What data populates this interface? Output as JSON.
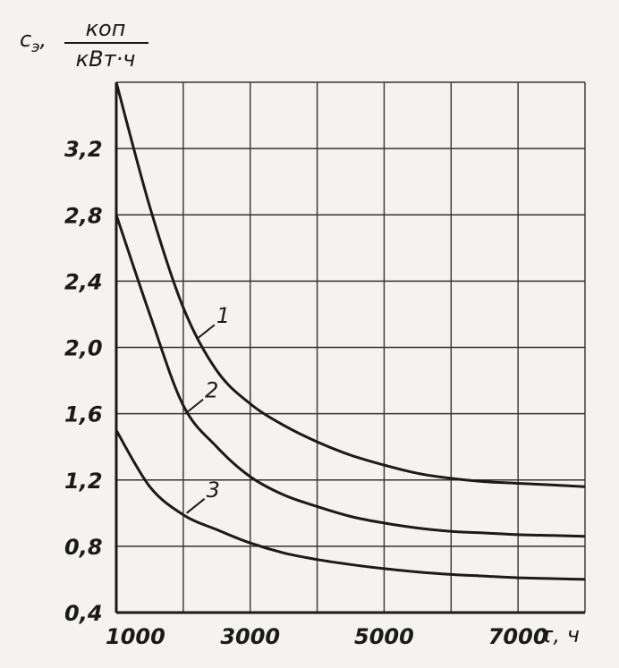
{
  "chart_data": {
    "type": "line",
    "xlabel": "τ, ч",
    "ylabel": {
      "symbol": "c",
      "subscript": "э",
      "unit_numerator": "коп",
      "unit_denominator": "кВт·ч"
    },
    "xlim": [
      1000,
      8000
    ],
    "ylim": [
      0.4,
      3.6
    ],
    "x_tick_values": [
      1000,
      3000,
      5000,
      7000
    ],
    "x_tick_labels": [
      "1000",
      "3000",
      "5000",
      "7000"
    ],
    "y_tick_values": [
      0.4,
      0.8,
      1.2,
      1.6,
      2.0,
      2.4,
      2.8,
      3.2
    ],
    "y_tick_labels": [
      "0,4",
      "0,8",
      "1,2",
      "1,6",
      "2,0",
      "2,4",
      "2,8",
      "3,2"
    ],
    "grid": true,
    "series": [
      {
        "name": "1",
        "x": [
          1000,
          1500,
          2000,
          2500,
          3000,
          3500,
          4000,
          4500,
          5000,
          5500,
          6000,
          6500,
          7000,
          7500,
          8000
        ],
        "y": [
          3.6,
          2.85,
          2.24,
          1.86,
          1.66,
          1.53,
          1.43,
          1.35,
          1.29,
          1.24,
          1.21,
          1.19,
          1.18,
          1.17,
          1.16
        ]
      },
      {
        "name": "2",
        "x": [
          1000,
          1500,
          2000,
          2500,
          3000,
          3500,
          4000,
          4500,
          5000,
          5500,
          6000,
          6500,
          7000,
          7500,
          8000
        ],
        "y": [
          2.8,
          2.2,
          1.65,
          1.4,
          1.22,
          1.11,
          1.04,
          0.98,
          0.94,
          0.91,
          0.89,
          0.88,
          0.87,
          0.865,
          0.86
        ]
      },
      {
        "name": "3",
        "x": [
          1000,
          1500,
          2000,
          2500,
          3000,
          3500,
          4000,
          4500,
          5000,
          5500,
          6000,
          6500,
          7000,
          7500,
          8000
        ],
        "y": [
          1.5,
          1.16,
          0.99,
          0.9,
          0.82,
          0.76,
          0.72,
          0.69,
          0.665,
          0.645,
          0.63,
          0.62,
          0.61,
          0.605,
          0.6
        ]
      }
    ],
    "curve_labels": [
      {
        "text": "1",
        "anchor_x": 2200,
        "anchor_y": 2.05
      },
      {
        "text": "2",
        "anchor_x": 2030,
        "anchor_y": 1.6
      },
      {
        "text": "3",
        "anchor_x": 2050,
        "anchor_y": 1.0
      }
    ]
  }
}
